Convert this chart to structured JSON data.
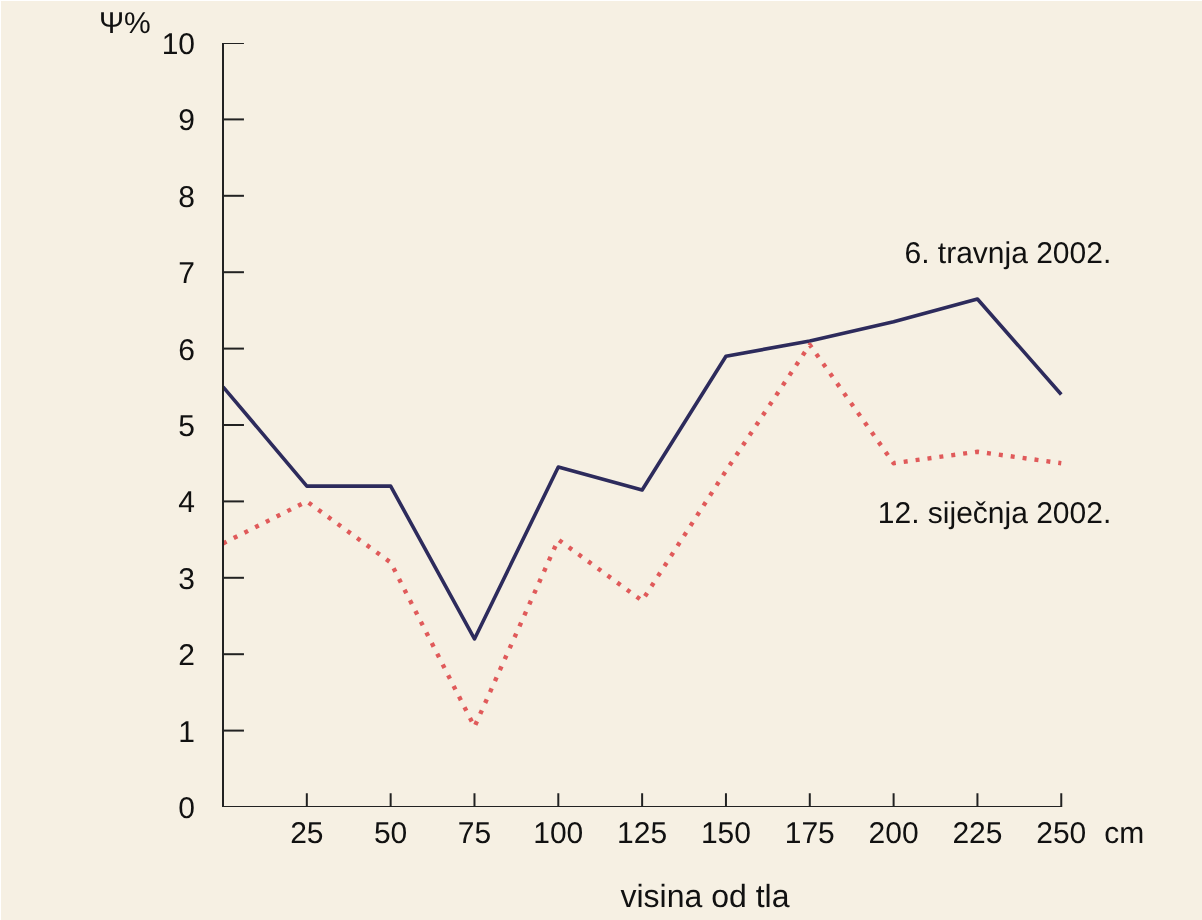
{
  "chart_data": {
    "type": "line",
    "ylabel": "Ψ%",
    "xlabel": "visina od tla",
    "x": [
      0,
      25,
      50,
      75,
      100,
      125,
      150,
      175,
      200,
      225,
      250
    ],
    "xlim": [
      0,
      250
    ],
    "xticks": [
      25,
      50,
      75,
      100,
      125,
      150,
      175,
      200,
      225,
      250
    ],
    "ylim": [
      0,
      10
    ],
    "yticks": [
      0,
      1,
      2,
      3,
      4,
      5,
      6,
      7,
      8,
      9,
      10
    ],
    "grid": false,
    "marker": "none",
    "annotations": [
      "cm"
    ],
    "series": [
      {
        "name": "6. travnja 2002.",
        "color": "#2d2b5c",
        "line_style": "solid",
        "values": [
          5.5,
          4.2,
          4.2,
          2.2,
          4.45,
          4.15,
          5.9,
          6.1,
          6.35,
          6.65,
          5.4
        ]
      },
      {
        "name": "12. siječnja 2002.",
        "color": "#e05a5a",
        "line_style": "dotted",
        "values": [
          3.45,
          4.0,
          3.2,
          1.05,
          3.5,
          2.7,
          4.4,
          6.05,
          4.5,
          4.65,
          4.5
        ]
      }
    ]
  }
}
